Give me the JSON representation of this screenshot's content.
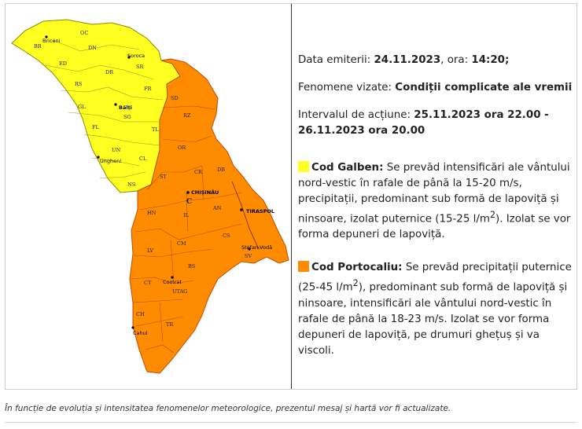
{
  "info": {
    "issued_label": "Data emiterii:",
    "issued_date": "24.11.2023",
    "time_label": "ora:",
    "issued_time": "14:20;",
    "phenomena_label": "Fenomene vizate:",
    "phenomena_value": "Condiții complicate ale vremii",
    "interval_label": "Intervalul de acțiune:",
    "interval_value": "25.11.2023 ora 22.00 - 26.11.2023 ora 20.00",
    "yellow_title": "Cod Galben:",
    "yellow_text_1": "Se prevăd intensificări ale vântului nord-vestic în rafale de până la 15-20 m/s, precipitații, predominant sub formă de lapoviță și ninsoare, izolat puternice (15-25 l/m",
    "yellow_sup": "2",
    "yellow_text_2": "). Izolat se vor forma depuneri de lapoviță.",
    "orange_title": "Cod Portocaliu:",
    "orange_text_1": "Se prevăd precipitații puternice (25-45 l/m",
    "orange_sup": "2",
    "orange_text_2": "), predominant sub formă de lapoviță și ninsoare, intensificări ale vântului nord-vestic în rafale de până la 18-23 m/s. Izolat se vor forma depuneri de lapoviță, pe drumuri ghețuș și va viscoli."
  },
  "footer": {
    "note": "În funcție de evoluția și intensitatea fenomenelor meteorologice, prezentul mesaj și hartă vor fi actualizate."
  },
  "colors": {
    "yellow": "#ffff22",
    "orange": "#ff8c00",
    "border": "#c04a00"
  },
  "map": {
    "districts": [
      {
        "code": "OC",
        "alert": "yellow"
      },
      {
        "code": "BR",
        "alert": "yellow"
      },
      {
        "code": "DN",
        "alert": "yellow"
      },
      {
        "code": "ED",
        "alert": "yellow"
      },
      {
        "code": "SR",
        "alert": "yellow"
      },
      {
        "code": "DR",
        "alert": "yellow"
      },
      {
        "code": "RS",
        "alert": "yellow"
      },
      {
        "code": "FR",
        "alert": "yellow"
      },
      {
        "code": "GL",
        "alert": "yellow"
      },
      {
        "code": "SG",
        "alert": "yellow"
      },
      {
        "code": "FL",
        "alert": "yellow"
      },
      {
        "code": "TL",
        "alert": "yellow"
      },
      {
        "code": "UN",
        "alert": "yellow"
      },
      {
        "code": "CL",
        "alert": "yellow"
      },
      {
        "code": "NS",
        "alert": "yellow"
      },
      {
        "code": "SD",
        "alert": "orange"
      },
      {
        "code": "RZ",
        "alert": "orange"
      },
      {
        "code": "OR",
        "alert": "orange"
      },
      {
        "code": "ST",
        "alert": "orange"
      },
      {
        "code": "CR",
        "alert": "orange"
      },
      {
        "code": "DB",
        "alert": "orange"
      },
      {
        "code": "C",
        "alert": "orange"
      },
      {
        "code": "HN",
        "alert": "orange"
      },
      {
        "code": "IL",
        "alert": "orange"
      },
      {
        "code": "AN",
        "alert": "orange"
      },
      {
        "code": "CM",
        "alert": "orange"
      },
      {
        "code": "CS",
        "alert": "orange"
      },
      {
        "code": "LV",
        "alert": "orange"
      },
      {
        "code": "BS",
        "alert": "orange"
      },
      {
        "code": "CT",
        "alert": "orange"
      },
      {
        "code": "UTAG",
        "alert": "orange"
      },
      {
        "code": "CH",
        "alert": "orange"
      },
      {
        "code": "TR",
        "alert": "orange"
      },
      {
        "code": "SV",
        "alert": "orange"
      }
    ],
    "cities": [
      "Briceni",
      "Soroca",
      "Bălți",
      "Ungheni",
      "CHIȘINĂU",
      "TIRASPOL",
      "Ștefan-Vodă",
      "Comrat",
      "Cahul"
    ]
  }
}
